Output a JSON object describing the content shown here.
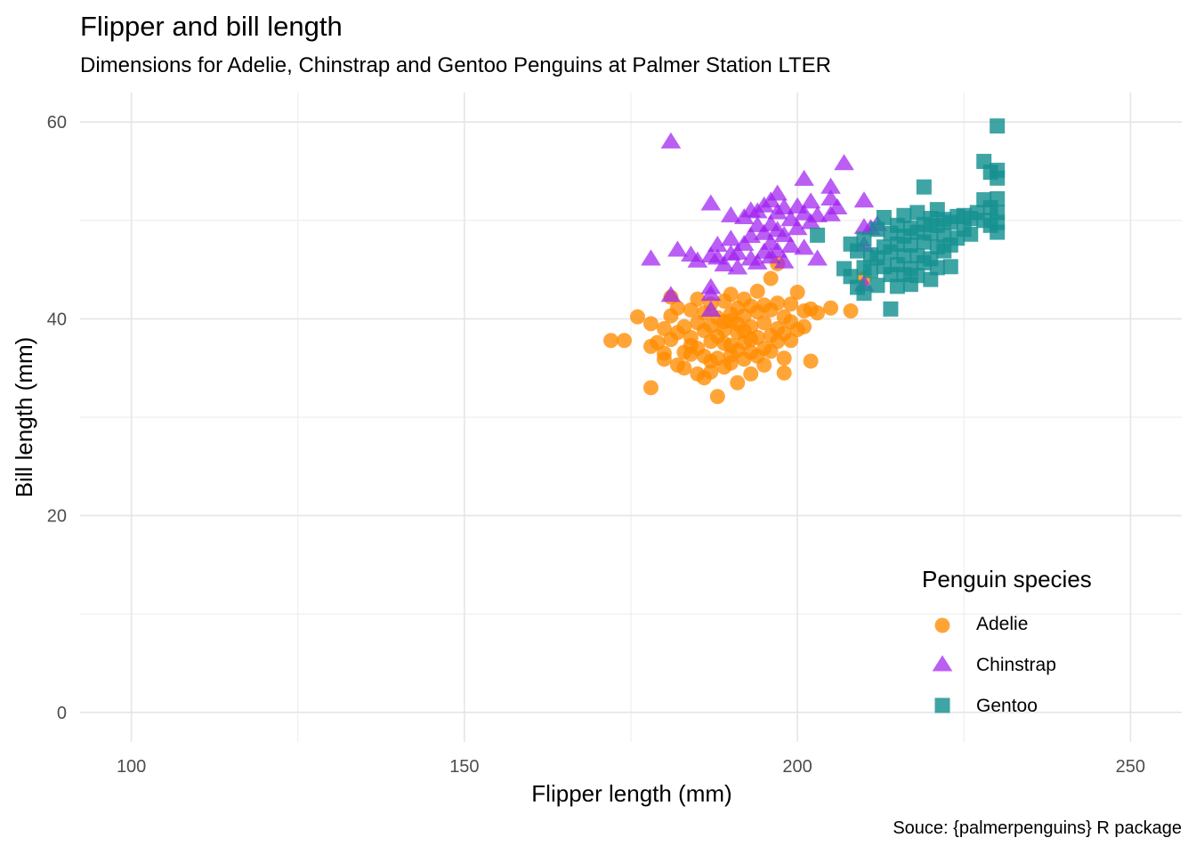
{
  "chart_data": {
    "type": "scatter",
    "title": "Flipper and bill length",
    "subtitle": "Dimensions for Adelie, Chinstrap and Gentoo Penguins at Palmer Station LTER",
    "caption": "Souce: {palmerpenguins} R package",
    "xlabel": "Flipper length (mm)",
    "ylabel": "Bill length (mm)",
    "xlim": [
      92.3,
      257.7
    ],
    "ylim": [
      -3,
      63
    ],
    "xticks": [
      100,
      150,
      200,
      250
    ],
    "xtick_labels": [
      "100",
      "150",
      "200",
      "250"
    ],
    "yticks": [
      0,
      20,
      40,
      60
    ],
    "ytick_labels": [
      "0",
      "20",
      "40",
      "60"
    ],
    "legend_title": "Penguin species",
    "legend_position": "bottom-right",
    "series": [
      {
        "name": "Adelie",
        "shape": "circle",
        "color": "#FF8C00",
        "points": [
          [
            172,
            37.8
          ],
          [
            174,
            37.8
          ],
          [
            176,
            40.2
          ],
          [
            178,
            39.5
          ],
          [
            178,
            37.2
          ],
          [
            178,
            33.0
          ],
          [
            179,
            37.6
          ],
          [
            180,
            39.0
          ],
          [
            180,
            36.5
          ],
          [
            180,
            35.9
          ],
          [
            181,
            42.2
          ],
          [
            181,
            40.3
          ],
          [
            181,
            37.9
          ],
          [
            182,
            41.1
          ],
          [
            182,
            38.6
          ],
          [
            182,
            35.3
          ],
          [
            183,
            39.2
          ],
          [
            183,
            36.6
          ],
          [
            183,
            35.0
          ],
          [
            184,
            37.3
          ],
          [
            184,
            40.9
          ],
          [
            184,
            38.1
          ],
          [
            184,
            36.4
          ],
          [
            185,
            39.6
          ],
          [
            185,
            37.0
          ],
          [
            185,
            34.4
          ],
          [
            185,
            42.0
          ],
          [
            186,
            38.8
          ],
          [
            186,
            36.2
          ],
          [
            186,
            40.6
          ],
          [
            186,
            34.0
          ],
          [
            187,
            39.3
          ],
          [
            187,
            37.7
          ],
          [
            187,
            35.7
          ],
          [
            187,
            41.5
          ],
          [
            187,
            34.6
          ],
          [
            188,
            38.2
          ],
          [
            188,
            36.0
          ],
          [
            188,
            40.1
          ],
          [
            188,
            32.1
          ],
          [
            189,
            39.7
          ],
          [
            189,
            37.5
          ],
          [
            189,
            35.1
          ],
          [
            189,
            41.8
          ],
          [
            189,
            38.9
          ],
          [
            190,
            40.5
          ],
          [
            190,
            37.3
          ],
          [
            190,
            36.3
          ],
          [
            190,
            39.8
          ],
          [
            190,
            42.5
          ],
          [
            190,
            35.5
          ],
          [
            191,
            38.6
          ],
          [
            191,
            41.1
          ],
          [
            191,
            36.8
          ],
          [
            191,
            39.5
          ],
          [
            191,
            33.5
          ],
          [
            192,
            40.3
          ],
          [
            192,
            37.6
          ],
          [
            192,
            35.9
          ],
          [
            192,
            42.0
          ],
          [
            192,
            38.8
          ],
          [
            193,
            39.2
          ],
          [
            193,
            36.6
          ],
          [
            193,
            41.3
          ],
          [
            193,
            37.9
          ],
          [
            193,
            34.4
          ],
          [
            194,
            40.7
          ],
          [
            194,
            38.1
          ],
          [
            194,
            36.2
          ],
          [
            194,
            42.8
          ],
          [
            195,
            39.6
          ],
          [
            195,
            37.0
          ],
          [
            195,
            41.4
          ],
          [
            195,
            35.3
          ],
          [
            196,
            38.3
          ],
          [
            196,
            40.9
          ],
          [
            196,
            36.7
          ],
          [
            196,
            44.1
          ],
          [
            197,
            39.0
          ],
          [
            197,
            41.6
          ],
          [
            197,
            45.6
          ],
          [
            197,
            37.7
          ],
          [
            198,
            38.5
          ],
          [
            198,
            40.2
          ],
          [
            198,
            34.5
          ],
          [
            198,
            36.0
          ],
          [
            199,
            41.5
          ],
          [
            199,
            37.8
          ],
          [
            199,
            39.7
          ],
          [
            200,
            38.9
          ],
          [
            200,
            42.7
          ],
          [
            201,
            40.8
          ],
          [
            201,
            39.2
          ],
          [
            202,
            41.0
          ],
          [
            202,
            35.7
          ],
          [
            203,
            40.6
          ],
          [
            205,
            41.1
          ],
          [
            208,
            40.8
          ],
          [
            210,
            44.1
          ]
        ]
      },
      {
        "name": "Chinstrap",
        "shape": "triangle",
        "color": "#A020F0",
        "points": [
          [
            178,
            46.1
          ],
          [
            181,
            58.0
          ],
          [
            181,
            42.4
          ],
          [
            182,
            47.0
          ],
          [
            184,
            46.5
          ],
          [
            185,
            45.9
          ],
          [
            187,
            51.7
          ],
          [
            187,
            46.4
          ],
          [
            187,
            43.2
          ],
          [
            187,
            42.5
          ],
          [
            187,
            40.9
          ],
          [
            188,
            46.2
          ],
          [
            188,
            47.5
          ],
          [
            189,
            45.5
          ],
          [
            190,
            50.5
          ],
          [
            190,
            46.6
          ],
          [
            190,
            48.1
          ],
          [
            191,
            46.7
          ],
          [
            191,
            45.2
          ],
          [
            192,
            50.3
          ],
          [
            192,
            47.6
          ],
          [
            193,
            51.0
          ],
          [
            193,
            46.1
          ],
          [
            193,
            48.4
          ],
          [
            194,
            50.9
          ],
          [
            194,
            45.7
          ],
          [
            194,
            49.5
          ],
          [
            195,
            51.5
          ],
          [
            195,
            46.8
          ],
          [
            195,
            48.7
          ],
          [
            196,
            52.0
          ],
          [
            196,
            49.6
          ],
          [
            196,
            46.3
          ],
          [
            196,
            47.7
          ],
          [
            197,
            52.7
          ],
          [
            197,
            50.8
          ],
          [
            197,
            49.0
          ],
          [
            197,
            46.9
          ],
          [
            198,
            51.3
          ],
          [
            198,
            48.5
          ],
          [
            198,
            45.8
          ],
          [
            199,
            50.1
          ],
          [
            199,
            47.4
          ],
          [
            200,
            51.4
          ],
          [
            200,
            49.2
          ],
          [
            201,
            54.2
          ],
          [
            201,
            50.7
          ],
          [
            201,
            47.2
          ],
          [
            202,
            51.9
          ],
          [
            202,
            49.8
          ],
          [
            203,
            50.5
          ],
          [
            203,
            46.1
          ],
          [
            205,
            53.4
          ],
          [
            205,
            52.2
          ],
          [
            205,
            50.6
          ],
          [
            206,
            51.3
          ],
          [
            207,
            55.8
          ],
          [
            210,
            52.0
          ],
          [
            210,
            49.3
          ],
          [
            210,
            47.5
          ],
          [
            210,
            43.5
          ],
          [
            211,
            49.2
          ],
          [
            212,
            49.6
          ]
        ]
      },
      {
        "name": "Gentoo",
        "shape": "square",
        "color": "#159090",
        "points": [
          [
            203,
            48.5
          ],
          [
            207,
            45.1
          ],
          [
            208,
            44.3
          ],
          [
            208,
            47.6
          ],
          [
            209,
            46.9
          ],
          [
            209,
            43.2
          ],
          [
            210,
            45.2
          ],
          [
            210,
            42.6
          ],
          [
            210,
            48.1
          ],
          [
            211,
            46.5
          ],
          [
            211,
            44.9
          ],
          [
            212,
            49.1
          ],
          [
            212,
            46.2
          ],
          [
            212,
            43.4
          ],
          [
            213,
            47.3
          ],
          [
            213,
            45.3
          ],
          [
            213,
            50.3
          ],
          [
            214,
            46.8
          ],
          [
            214,
            44.5
          ],
          [
            214,
            41.0
          ],
          [
            214,
            48.7
          ],
          [
            215,
            47.6
          ],
          [
            215,
            45.5
          ],
          [
            215,
            49.5
          ],
          [
            215,
            43.3
          ],
          [
            216,
            48.4
          ],
          [
            216,
            46.4
          ],
          [
            216,
            44.5
          ],
          [
            216,
            50.5
          ],
          [
            217,
            47.5
          ],
          [
            217,
            45.1
          ],
          [
            217,
            49.2
          ],
          [
            217,
            43.5
          ],
          [
            218,
            48.8
          ],
          [
            218,
            46.4
          ],
          [
            218,
            50.8
          ],
          [
            218,
            44.4
          ],
          [
            219,
            47.8
          ],
          [
            219,
            45.7
          ],
          [
            219,
            49.6
          ],
          [
            219,
            53.4
          ],
          [
            220,
            48.7
          ],
          [
            220,
            46.1
          ],
          [
            220,
            50.2
          ],
          [
            220,
            44.0
          ],
          [
            221,
            49.5
          ],
          [
            221,
            47.3
          ],
          [
            221,
            45.2
          ],
          [
            221,
            51.1
          ],
          [
            222,
            48.5
          ],
          [
            222,
            50.1
          ],
          [
            222,
            46.9
          ],
          [
            223,
            49.8
          ],
          [
            223,
            47.5
          ],
          [
            223,
            45.3
          ],
          [
            224,
            50.4
          ],
          [
            224,
            48.2
          ],
          [
            225,
            50.5
          ],
          [
            225,
            49.1
          ],
          [
            226,
            50.2
          ],
          [
            226,
            48.6
          ],
          [
            227,
            50.8
          ],
          [
            228,
            52.1
          ],
          [
            228,
            50.0
          ],
          [
            228,
            56.0
          ],
          [
            229,
            51.3
          ],
          [
            229,
            49.5
          ],
          [
            229,
            54.9
          ],
          [
            230,
            50.8
          ],
          [
            230,
            48.8
          ],
          [
            230,
            52.2
          ],
          [
            230,
            59.6
          ],
          [
            230,
            55.1
          ],
          [
            230,
            54.3
          ],
          [
            230,
            49.8
          ]
        ]
      }
    ]
  }
}
